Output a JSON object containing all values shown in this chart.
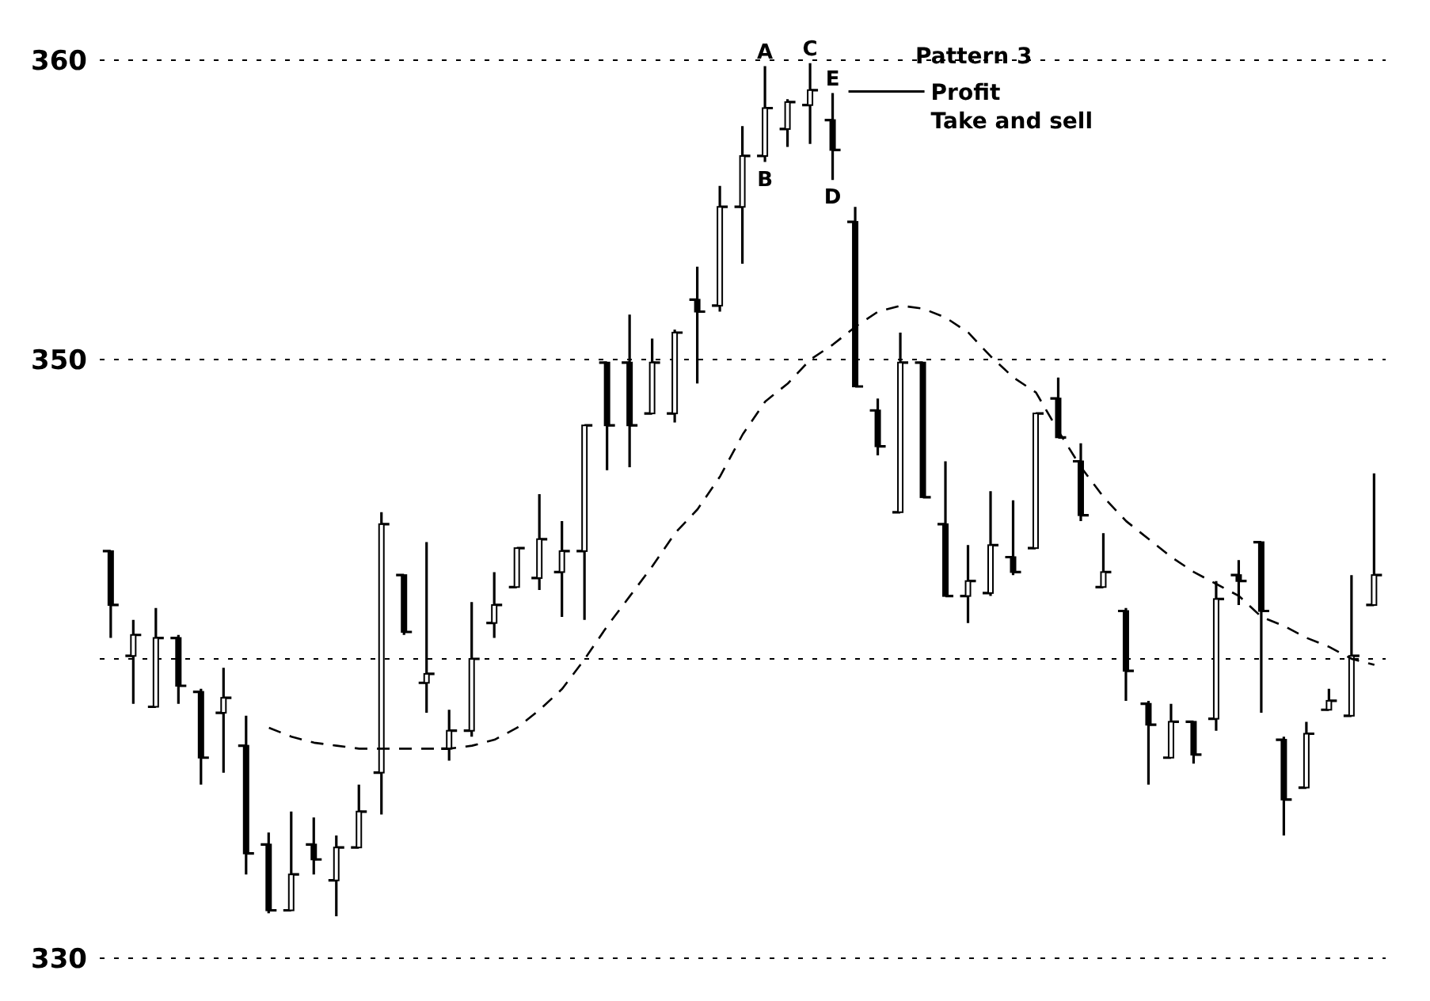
{
  "chart_data": {
    "type": "candlestick",
    "color": "#000000",
    "categories": [
      null,
      null,
      null,
      null,
      null,
      null,
      null,
      null,
      null,
      null,
      null,
      null,
      null,
      null,
      null,
      null,
      null,
      null,
      null,
      null,
      null,
      null,
      null,
      null,
      null,
      null,
      null,
      null,
      null,
      null,
      null,
      null,
      null,
      null,
      null,
      null,
      null,
      null,
      null,
      null,
      null,
      null,
      null,
      null,
      null,
      null,
      null,
      null,
      null,
      null,
      null,
      null,
      null,
      null,
      null,
      null,
      null
    ],
    "ohlc": [
      [
        343.6,
        343.6,
        340.7,
        341.8
      ],
      [
        340.1,
        341.3,
        338.5,
        340.8
      ],
      [
        338.4,
        341.7,
        338.4,
        340.7
      ],
      [
        340.7,
        340.8,
        338.5,
        339.1
      ],
      [
        338.9,
        339.0,
        335.8,
        336.7
      ],
      [
        338.2,
        339.7,
        336.2,
        338.7
      ],
      [
        337.1,
        338.1,
        332.8,
        333.5
      ],
      [
        333.8,
        334.2,
        331.5,
        331.6
      ],
      [
        331.6,
        334.9,
        331.6,
        332.8
      ],
      [
        333.8,
        334.7,
        332.8,
        333.3
      ],
      [
        332.6,
        334.1,
        331.4,
        333.7
      ],
      [
        333.7,
        335.8,
        333.7,
        334.9
      ],
      [
        336.2,
        344.9,
        334.8,
        344.5
      ],
      [
        342.8,
        342.8,
        340.8,
        340.9
      ],
      [
        339.2,
        343.9,
        338.2,
        339.5
      ],
      [
        337.0,
        338.3,
        336.6,
        337.6
      ],
      [
        337.6,
        341.9,
        337.4,
        340.0
      ],
      [
        341.2,
        342.9,
        340.7,
        341.8
      ],
      [
        342.4,
        343.7,
        342.4,
        343.7
      ],
      [
        342.7,
        345.5,
        342.3,
        344.0
      ],
      [
        342.9,
        344.6,
        341.4,
        343.6
      ],
      [
        343.6,
        347.8,
        341.3,
        347.8
      ],
      [
        349.9,
        349.9,
        346.3,
        347.8
      ],
      [
        349.9,
        351.5,
        346.4,
        347.8
      ],
      [
        348.2,
        350.7,
        348.2,
        349.9
      ],
      [
        348.2,
        351.0,
        347.9,
        350.9
      ],
      [
        352.0,
        353.1,
        349.2,
        351.6
      ],
      [
        351.8,
        355.8,
        351.6,
        355.1
      ],
      [
        355.1,
        357.8,
        353.2,
        356.8
      ],
      [
        356.8,
        359.8,
        356.6,
        358.4
      ],
      [
        357.7,
        358.7,
        357.1,
        358.6
      ],
      [
        358.5,
        359.9,
        357.2,
        359.0
      ],
      [
        358.0,
        358.9,
        356.0,
        357.0
      ],
      [
        354.6,
        355.1,
        349.1,
        349.1
      ],
      [
        348.3,
        348.7,
        346.8,
        347.1
      ],
      [
        344.9,
        350.9,
        344.9,
        349.9
      ],
      [
        349.9,
        349.9,
        345.4,
        345.4
      ],
      [
        344.5,
        346.6,
        342.1,
        342.1
      ],
      [
        342.1,
        343.8,
        341.2,
        342.6
      ],
      [
        342.2,
        345.6,
        342.1,
        343.8
      ],
      [
        343.4,
        345.3,
        342.8,
        342.9
      ],
      [
        343.7,
        348.2,
        343.7,
        348.2
      ],
      [
        348.7,
        349.4,
        347.4,
        347.4
      ],
      [
        346.6,
        347.2,
        344.6,
        344.8
      ],
      [
        342.4,
        344.2,
        342.4,
        342.9
      ],
      [
        341.6,
        341.7,
        338.6,
        339.6
      ],
      [
        338.5,
        338.6,
        335.8,
        337.8
      ],
      [
        336.7,
        338.5,
        336.7,
        337.9
      ],
      [
        337.9,
        337.9,
        336.5,
        336.8
      ],
      [
        338.0,
        342.6,
        337.6,
        342.0
      ],
      [
        342.8,
        343.3,
        341.8,
        342.6
      ],
      [
        343.9,
        343.9,
        338.2,
        341.6
      ],
      [
        337.3,
        337.4,
        334.1,
        335.3
      ],
      [
        335.7,
        337.9,
        335.7,
        337.5
      ],
      [
        338.3,
        339.0,
        338.3,
        338.6
      ],
      [
        338.1,
        342.8,
        338.1,
        340.1
      ],
      [
        341.8,
        346.2,
        341.8,
        342.8
      ]
    ],
    "series": [
      {
        "type": "line",
        "color": "#000000",
        "line_style": "dashed",
        "marker": "none",
        "values": [
          null,
          null,
          null,
          null,
          null,
          null,
          null,
          337.7,
          337.4,
          337.2,
          337.1,
          337.0,
          337.0,
          337.0,
          337.0,
          337.0,
          337.1,
          337.3,
          337.7,
          338.3,
          339.0,
          340.0,
          341.1,
          342.1,
          343.1,
          344.2,
          345.0,
          346.1,
          347.5,
          348.6,
          349.2,
          350.0,
          350.5,
          351.1,
          351.6,
          351.8,
          351.7,
          351.4,
          350.9,
          350.1,
          349.4,
          348.9,
          347.6,
          346.4,
          345.4,
          344.6,
          344.0,
          343.4,
          342.9,
          342.5,
          342.1,
          341.4,
          341.1,
          340.7,
          340.4,
          340.0,
          339.8
        ]
      }
    ],
    "ylim": [
      330,
      360
    ],
    "yticks": [
      330,
      {
        "value": 340,
        "label": null
      },
      350,
      360
    ],
    "grid": "y",
    "tick_labels": "y",
    "annotations": [
      "Pattern 3",
      {
        "text": "A",
        "y": 359.8
      },
      {
        "text": "B",
        "y": 356.6
      },
      {
        "text": "C",
        "y": 359.9
      },
      {
        "text": "D",
        "y": 356.0
      },
      {
        "text": "E",
        "y": 358.9
      },
      "Profit",
      "Take and sell"
    ]
  }
}
